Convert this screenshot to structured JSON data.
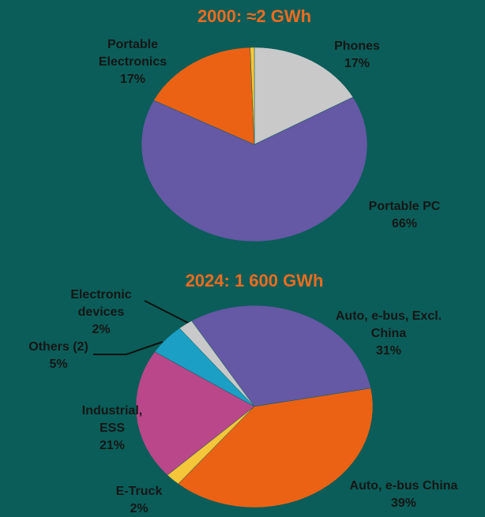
{
  "chart_data": [
    {
      "type": "pie",
      "title": "2000: ≈2 GWh",
      "categories": [
        "Phones",
        "Portable PC",
        "Portable Electronics",
        null
      ],
      "values": [
        17,
        66,
        17,
        0.6
      ],
      "value_labels": [
        "17%",
        "66%",
        "17%",
        null
      ],
      "colors": [
        "#c9c9c9",
        "#6558a4",
        "#ec6214",
        "#f5c63a"
      ]
    },
    {
      "type": "pie",
      "title": "2024: 1 600 GWh",
      "categories": [
        "Auto, e-bus, Excl. China",
        "Auto, e-bus China",
        "E-Truck",
        "Industrial, ESS",
        "Others (2)",
        "Electronic devices"
      ],
      "values": [
        31,
        39,
        2,
        21,
        5,
        2
      ],
      "value_labels": [
        "31%",
        "39%",
        "2%",
        "21%",
        "5%",
        "2%"
      ],
      "colors": [
        "#6558a4",
        "#ec6214",
        "#f5c63a",
        "#b9478a",
        "#1b9fc4",
        "#c9c9c9"
      ]
    }
  ]
}
